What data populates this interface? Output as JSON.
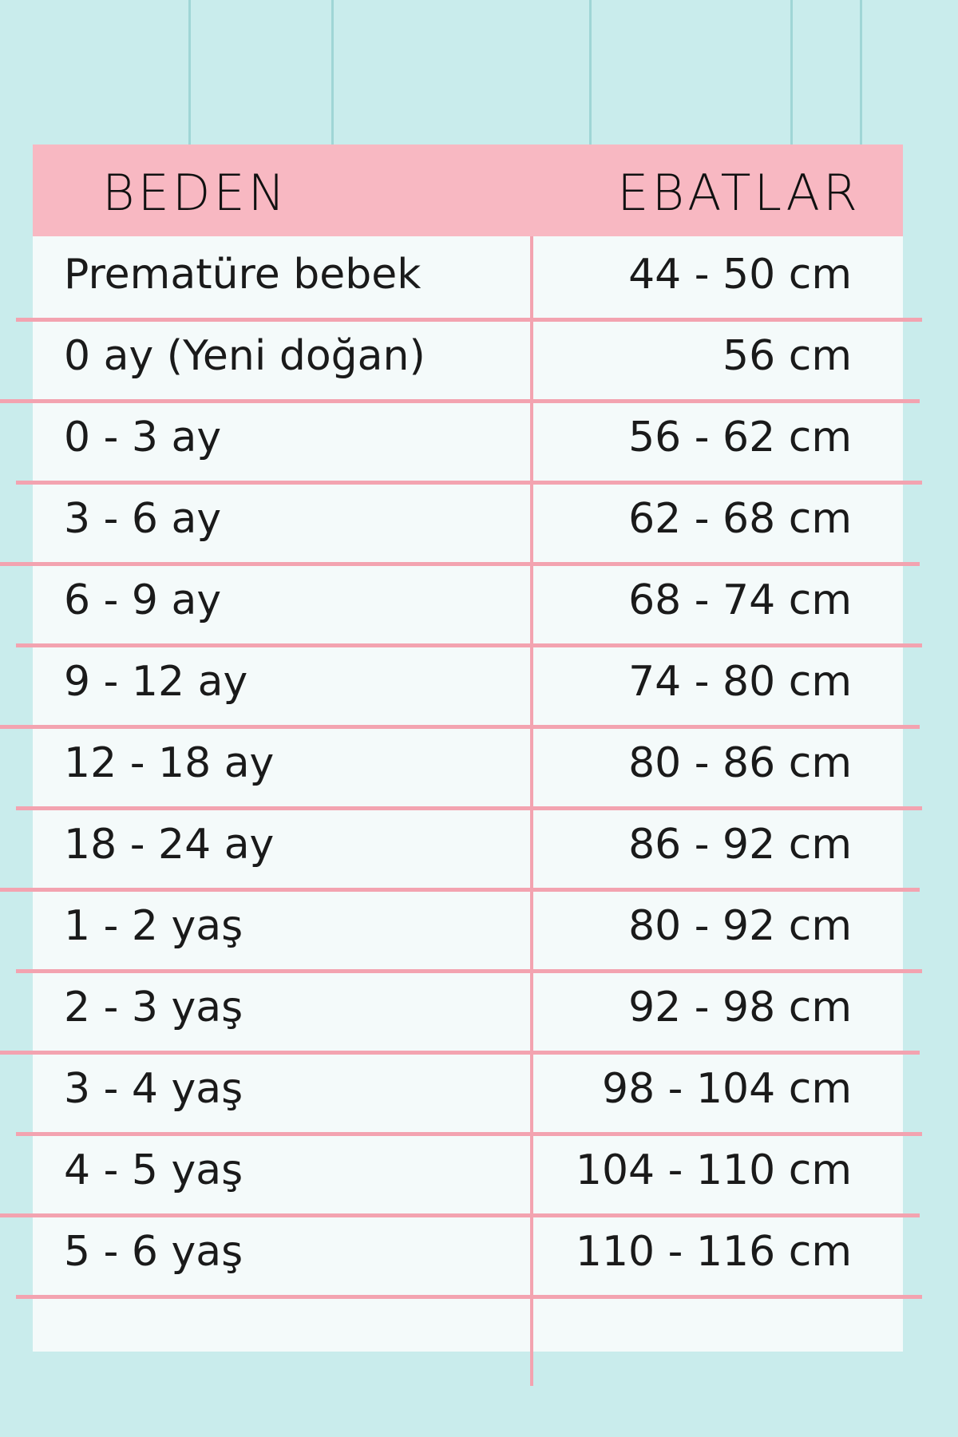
{
  "table": {
    "columns": [
      "BEDEN",
      "EBATLAR"
    ],
    "rows": [
      [
        "Prematüre bebek",
        "44 - 50 cm"
      ],
      [
        "0 ay (Yeni doğan)",
        "56 cm"
      ],
      [
        "0 - 3 ay",
        "56 - 62 cm"
      ],
      [
        "3 - 6 ay",
        "62 - 68 cm"
      ],
      [
        "6 - 9 ay",
        "68 - 74 cm"
      ],
      [
        "9 - 12 ay",
        "74 - 80 cm"
      ],
      [
        "12 - 18 ay",
        "80 - 86 cm"
      ],
      [
        "18 - 24 ay",
        "86 - 92 cm"
      ],
      [
        "1 - 2 yaş",
        "80 - 92 cm"
      ],
      [
        "2 - 3 yaş",
        "92 - 98 cm"
      ],
      [
        "3 - 4 yaş",
        "98 - 104 cm"
      ],
      [
        "4 - 5 yaş",
        "104 - 110 cm"
      ],
      [
        "5 - 6 yaş",
        "110 - 116 cm"
      ]
    ]
  }
}
